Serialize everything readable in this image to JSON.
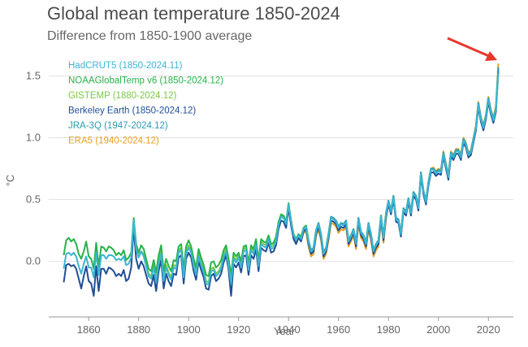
{
  "chart_data": {
    "type": "line",
    "title": "Global mean temperature 1850-2024",
    "subtitle": "Difference from 1850-1900 average",
    "xlabel": "Year",
    "ylabel": "°C",
    "xlim": [
      1844,
      2030
    ],
    "ylim": [
      -0.45,
      1.72
    ],
    "xticks": [
      1860,
      1880,
      1900,
      1920,
      1940,
      1960,
      1980,
      2000,
      2020
    ],
    "yticks": [
      0.0,
      0.5,
      1.0,
      1.5
    ],
    "ytick_labels": [
      "0.0",
      "0.5",
      "1.0",
      "1.5"
    ],
    "grid": true,
    "legend_position": "top-left",
    "annotation": "red arrow pointing to 2024 peak",
    "series": [
      {
        "name": "HadCRUT5 (1850-2024.11)",
        "color": "#3bb6d4",
        "start": 1850,
        "values": [
          -0.06,
          0.06,
          0.07,
          0.05,
          0.07,
          0.04,
          -0.04,
          -0.1,
          -0.02,
          0.04,
          -0.05,
          -0.05,
          -0.13,
          0.07,
          -0.11,
          0.05,
          0.05,
          0.02,
          0.05,
          0.05,
          0.04,
          0.01,
          0.02,
          0.01,
          0.04,
          -0.03,
          -0.02,
          0.03,
          0.33,
          0.1,
          0.03,
          0.08,
          0.04,
          -0.04,
          -0.12,
          -0.14,
          -0.05,
          -0.17,
          -0.02,
          0.06,
          -0.16,
          -0.05,
          -0.11,
          -0.15,
          -0.05,
          -0.06,
          0.07,
          0.09,
          -0.13,
          0.06,
          0.11,
          0.07,
          -0.04,
          -0.11,
          0.04,
          -0.03,
          -0.09,
          -0.18,
          -0.19,
          -0.08,
          -0.07,
          -0.12,
          -0.1,
          -0.06,
          0.03,
          0.08,
          -0.04,
          -0.18,
          0.02,
          -0.01,
          0.03,
          -0.05,
          0.08,
          0.09,
          -0.07,
          0.09,
          0.06,
          0.14,
          -0.04,
          0.14,
          0.12,
          0.11,
          0.18,
          0.1,
          0.11,
          0.16,
          0.29,
          0.36,
          0.35,
          0.3,
          0.46,
          0.32,
          0.21,
          0.17,
          0.21,
          0.18,
          0.26,
          0.28,
          0.16,
          0.08,
          0.1,
          0.24,
          0.3,
          0.21,
          0.06,
          0.1,
          0.21,
          0.35,
          0.34,
          0.32,
          0.27,
          0.3,
          0.29,
          0.32,
          0.16,
          0.2,
          0.25,
          0.14,
          0.34,
          0.23,
          0.2,
          0.14,
          0.3,
          0.21,
          0.08,
          0.13,
          0.16,
          0.36,
          0.19,
          0.38,
          0.48,
          0.4,
          0.52,
          0.34,
          0.33,
          0.22,
          0.42,
          0.39,
          0.5,
          0.39,
          0.55,
          0.52,
          0.43,
          0.71,
          0.56,
          0.48,
          0.63,
          0.74,
          0.74,
          0.71,
          0.73,
          0.72,
          0.87,
          0.77,
          0.68,
          0.87,
          0.84,
          0.89,
          0.89,
          0.84,
          0.98,
          0.94,
          0.86,
          0.88,
          0.98,
          1.08,
          1.27,
          1.15,
          1.08,
          1.17,
          1.31,
          1.21,
          1.14,
          1.23,
          1.52
        ]
      },
      {
        "name": "NOAAGlobalTemp v6 (1850-2024.12)",
        "color": "#27b24a",
        "start": 1850,
        "values": [
          0.05,
          0.17,
          0.19,
          0.16,
          0.18,
          0.14,
          0.06,
          0.02,
          0.08,
          0.16,
          0.04,
          0.02,
          -0.06,
          0.15,
          -0.04,
          0.12,
          0.11,
          0.08,
          0.12,
          0.11,
          0.09,
          0.05,
          0.07,
          0.05,
          0.09,
          0.01,
          0.03,
          0.07,
          0.35,
          0.14,
          0.07,
          0.13,
          0.1,
          0.02,
          -0.06,
          -0.08,
          0.01,
          -0.09,
          0.05,
          0.13,
          -0.08,
          0.02,
          -0.04,
          -0.08,
          0.01,
          0.0,
          0.12,
          0.14,
          -0.06,
          0.12,
          0.17,
          0.12,
          0.02,
          -0.05,
          0.1,
          0.03,
          -0.03,
          -0.11,
          -0.12,
          -0.01,
          0.0,
          -0.05,
          -0.03,
          0.01,
          0.09,
          0.13,
          0.02,
          -0.11,
          0.07,
          0.04,
          0.07,
          0.0,
          0.12,
          0.13,
          -0.02,
          0.13,
          0.1,
          0.18,
          0.01,
          0.18,
          0.16,
          0.15,
          0.21,
          0.14,
          0.15,
          0.2,
          0.32,
          0.38,
          0.37,
          0.32,
          0.47,
          0.33,
          0.22,
          0.18,
          0.22,
          0.2,
          0.27,
          0.29,
          0.17,
          0.09,
          0.11,
          0.25,
          0.31,
          0.22,
          0.07,
          0.11,
          0.22,
          0.36,
          0.35,
          0.33,
          0.28,
          0.31,
          0.3,
          0.33,
          0.17,
          0.21,
          0.26,
          0.15,
          0.35,
          0.24,
          0.21,
          0.15,
          0.31,
          0.22,
          0.09,
          0.14,
          0.17,
          0.37,
          0.2,
          0.39,
          0.49,
          0.41,
          0.53,
          0.35,
          0.34,
          0.23,
          0.43,
          0.4,
          0.51,
          0.4,
          0.56,
          0.53,
          0.44,
          0.72,
          0.57,
          0.49,
          0.64,
          0.75,
          0.75,
          0.72,
          0.74,
          0.73,
          0.88,
          0.78,
          0.69,
          0.88,
          0.85,
          0.9,
          0.9,
          0.85,
          0.99,
          0.95,
          0.87,
          0.89,
          0.99,
          1.09,
          1.28,
          1.16,
          1.09,
          1.18,
          1.32,
          1.22,
          1.15,
          1.24,
          1.55
        ]
      },
      {
        "name": "GISTEMP (1880-2024.12)",
        "color": "#7ac943",
        "start": 1880,
        "values": [
          0.05,
          0.08,
          0.06,
          -0.02,
          -0.1,
          -0.12,
          -0.03,
          -0.15,
          0.0,
          0.08,
          -0.14,
          -0.03,
          -0.09,
          -0.13,
          -0.03,
          -0.04,
          0.09,
          0.11,
          -0.11,
          0.08,
          0.13,
          0.09,
          -0.02,
          -0.09,
          0.06,
          -0.01,
          -0.07,
          -0.16,
          -0.17,
          -0.06,
          -0.05,
          -0.1,
          -0.08,
          -0.04,
          0.05,
          0.1,
          -0.02,
          -0.16,
          0.04,
          0.01,
          0.05,
          -0.03,
          0.1,
          0.11,
          -0.05,
          0.11,
          0.08,
          0.16,
          -0.02,
          0.16,
          0.14,
          0.13,
          0.2,
          0.12,
          0.13,
          0.18,
          0.31,
          0.37,
          0.36,
          0.31,
          0.47,
          0.33,
          0.22,
          0.18,
          0.22,
          0.19,
          0.27,
          0.29,
          0.17,
          0.09,
          0.11,
          0.25,
          0.31,
          0.22,
          0.07,
          0.11,
          0.22,
          0.36,
          0.35,
          0.33,
          0.28,
          0.31,
          0.3,
          0.33,
          0.17,
          0.21,
          0.26,
          0.15,
          0.35,
          0.24,
          0.21,
          0.15,
          0.31,
          0.22,
          0.09,
          0.14,
          0.17,
          0.37,
          0.2,
          0.39,
          0.49,
          0.41,
          0.53,
          0.35,
          0.34,
          0.23,
          0.43,
          0.4,
          0.51,
          0.4,
          0.56,
          0.53,
          0.44,
          0.72,
          0.57,
          0.49,
          0.64,
          0.75,
          0.75,
          0.72,
          0.74,
          0.73,
          0.88,
          0.78,
          0.69,
          0.88,
          0.85,
          0.9,
          0.9,
          0.85,
          0.99,
          0.95,
          0.87,
          0.89,
          0.99,
          1.09,
          1.28,
          1.16,
          1.09,
          1.18,
          1.32,
          1.22,
          1.15,
          1.24,
          1.56
        ]
      },
      {
        "name": "Berkeley Earth (1850-2024.12)",
        "color": "#1f4e96",
        "start": 1850,
        "values": [
          -0.17,
          -0.03,
          -0.02,
          -0.04,
          -0.03,
          -0.06,
          -0.14,
          -0.22,
          -0.12,
          -0.04,
          -0.16,
          -0.18,
          -0.28,
          -0.04,
          -0.24,
          -0.06,
          -0.06,
          -0.1,
          -0.05,
          -0.06,
          -0.08,
          -0.12,
          -0.1,
          -0.12,
          -0.07,
          -0.16,
          -0.14,
          -0.05,
          0.27,
          0.02,
          -0.06,
          0.0,
          -0.04,
          -0.11,
          -0.18,
          -0.2,
          -0.11,
          -0.24,
          -0.08,
          0.01,
          -0.22,
          -0.1,
          -0.16,
          -0.2,
          -0.1,
          -0.11,
          0.03,
          0.05,
          -0.18,
          0.02,
          0.07,
          0.03,
          -0.08,
          -0.15,
          0.0,
          -0.07,
          -0.13,
          -0.22,
          -0.23,
          -0.12,
          -0.1,
          -0.16,
          -0.14,
          -0.1,
          -0.01,
          0.05,
          -0.07,
          -0.28,
          -0.02,
          -0.05,
          -0.01,
          -0.09,
          0.04,
          0.05,
          -0.11,
          0.05,
          0.02,
          0.1,
          -0.08,
          0.11,
          0.09,
          0.08,
          0.15,
          0.07,
          0.08,
          0.13,
          0.26,
          0.33,
          0.32,
          0.27,
          0.43,
          0.29,
          0.18,
          0.14,
          0.19,
          0.16,
          0.24,
          0.26,
          0.14,
          0.06,
          0.08,
          0.22,
          0.28,
          0.19,
          0.04,
          0.08,
          0.19,
          0.33,
          0.32,
          0.3,
          0.25,
          0.28,
          0.27,
          0.3,
          0.14,
          0.18,
          0.23,
          0.12,
          0.32,
          0.21,
          0.18,
          0.12,
          0.28,
          0.19,
          0.06,
          0.11,
          0.14,
          0.34,
          0.17,
          0.36,
          0.46,
          0.38,
          0.5,
          0.32,
          0.31,
          0.2,
          0.4,
          0.37,
          0.48,
          0.37,
          0.53,
          0.5,
          0.41,
          0.69,
          0.54,
          0.46,
          0.61,
          0.72,
          0.72,
          0.69,
          0.71,
          0.7,
          0.85,
          0.75,
          0.66,
          0.85,
          0.82,
          0.87,
          0.87,
          0.82,
          0.96,
          0.92,
          0.84,
          0.86,
          0.96,
          1.06,
          1.25,
          1.13,
          1.06,
          1.15,
          1.29,
          1.19,
          1.12,
          1.21,
          1.54
        ]
      },
      {
        "name": "JRA-3Q (1947-2024.12)",
        "color": "#2a9cb3",
        "start": 1947,
        "values": [
          0.25,
          0.17,
          0.09,
          0.11,
          0.25,
          0.31,
          0.22,
          0.07,
          0.11,
          0.22,
          0.36,
          0.35,
          0.33,
          0.28,
          0.31,
          0.3,
          0.33,
          0.17,
          0.21,
          0.26,
          0.15,
          0.35,
          0.24,
          0.21,
          0.15,
          0.31,
          0.22,
          0.09,
          0.14,
          0.17,
          0.37,
          0.2,
          0.39,
          0.49,
          0.41,
          0.53,
          0.35,
          0.34,
          0.23,
          0.43,
          0.4,
          0.51,
          0.4,
          0.56,
          0.53,
          0.44,
          0.72,
          0.57,
          0.49,
          0.64,
          0.75,
          0.75,
          0.72,
          0.74,
          0.73,
          0.88,
          0.78,
          0.69,
          0.88,
          0.85,
          0.9,
          0.9,
          0.85,
          0.99,
          0.95,
          0.87,
          0.89,
          0.99,
          1.09,
          1.28,
          1.16,
          1.09,
          1.18,
          1.32,
          1.22,
          1.15,
          1.24,
          1.57
        ]
      },
      {
        "name": "ERA5 (1940-2024.12)",
        "color": "#e8a020",
        "start": 1940,
        "values": [
          0.42,
          0.34,
          0.21,
          0.16,
          0.19,
          0.17,
          0.23,
          0.24,
          0.12,
          0.04,
          0.06,
          0.2,
          0.26,
          0.17,
          0.02,
          0.06,
          0.17,
          0.31,
          0.3,
          0.28,
          0.23,
          0.26,
          0.25,
          0.28,
          0.12,
          0.16,
          0.21,
          0.1,
          0.3,
          0.19,
          0.16,
          0.1,
          0.26,
          0.17,
          0.04,
          0.09,
          0.12,
          0.32,
          0.15,
          0.34,
          0.48,
          0.4,
          0.52,
          0.34,
          0.33,
          0.22,
          0.42,
          0.39,
          0.51,
          0.4,
          0.56,
          0.53,
          0.44,
          0.72,
          0.57,
          0.49,
          0.64,
          0.75,
          0.76,
          0.73,
          0.75,
          0.74,
          0.89,
          0.79,
          0.7,
          0.89,
          0.86,
          0.91,
          0.91,
          0.86,
          1.0,
          0.96,
          0.88,
          0.9,
          1.0,
          1.1,
          1.29,
          1.17,
          1.1,
          1.19,
          1.33,
          1.23,
          1.16,
          1.26,
          1.6
        ]
      }
    ]
  }
}
